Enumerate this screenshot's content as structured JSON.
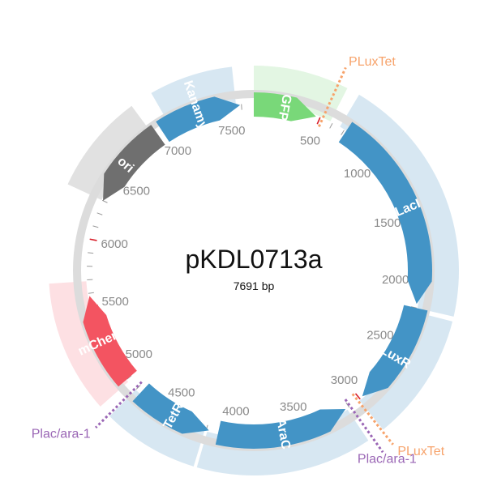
{
  "plasmid": {
    "name": "pKDL0713a",
    "length_label": "7691 bp",
    "length": 7691
  },
  "colors": {
    "blue": "#4394c6",
    "light_blue": "#d7e7f2",
    "green": "#79d879",
    "light_green": "#e3f6e3",
    "red": "#f35461",
    "light_red": "#fde0e3",
    "gray": "#6f6f6f",
    "light_gray": "#e1e1e1",
    "backbone": "#dcdcdc",
    "orange": "#f7a36b",
    "purple": "#9a66b5",
    "minor_tick": "#9a9a9a",
    "major_tick": "#d81e2a"
  },
  "features": [
    {
      "name": "GFP",
      "start": 7691,
      "end": 470,
      "color": "green",
      "direction": 1
    },
    {
      "name": "LacI",
      "start": 715,
      "end": 2170,
      "color": "blue",
      "direction": 1
    },
    {
      "name": "LuxR",
      "start": 2200,
      "end": 2975,
      "color": "blue",
      "direction": 1
    },
    {
      "name": "AraC",
      "start": 3130,
      "end": 4110,
      "color": "blue",
      "direction": -1
    },
    {
      "name": "TetR",
      "start": 4180,
      "end": 4760,
      "color": "blue",
      "direction": -1
    },
    {
      "name": "mCherry",
      "start": 4900,
      "end": 5580,
      "color": "red",
      "direction": 1
    },
    {
      "name": "ori",
      "start": 6300,
      "end": 6940,
      "color": "gray",
      "direction": -1
    },
    {
      "name": "Kanamycin",
      "start": 6980,
      "end": 7590,
      "color": "blue",
      "direction": 1
    }
  ],
  "outer_arcs": [
    {
      "start": 7050,
      "end": 7560,
      "color": "light_blue"
    },
    {
      "start": 7691,
      "end": 580,
      "color": "light_green"
    },
    {
      "start": 660,
      "end": 2200,
      "color": "light_blue"
    },
    {
      "start": 2230,
      "end": 3010,
      "color": "light_blue"
    },
    {
      "start": 3120,
      "end": 4190,
      "color": "light_blue"
    },
    {
      "start": 4210,
      "end": 4800,
      "color": "light_blue"
    },
    {
      "start": 4880,
      "end": 5690,
      "color": "light_red"
    },
    {
      "start": 6300,
      "end": 6910,
      "color": "light_gray"
    }
  ],
  "sites": [
    {
      "label": "PLuxTet",
      "position": 520,
      "color": "orange",
      "anchor": "start"
    },
    {
      "label": "PLuxTet",
      "position": 3020,
      "color": "orange",
      "anchor": "start"
    },
    {
      "label": "Plac/ara-1",
      "position": 3090,
      "color": "purple",
      "anchor": "middle"
    },
    {
      "label": "Plac/ara-1",
      "position": 4810,
      "color": "purple",
      "anchor": "end"
    }
  ],
  "ticks": {
    "major_every": 500,
    "minor_every": 100,
    "labels": [
      "500",
      "1000",
      "1500",
      "2000",
      "2500",
      "3000",
      "3500",
      "4000",
      "4500",
      "5000",
      "5500",
      "6000",
      "6500",
      "7000",
      "7500"
    ]
  }
}
